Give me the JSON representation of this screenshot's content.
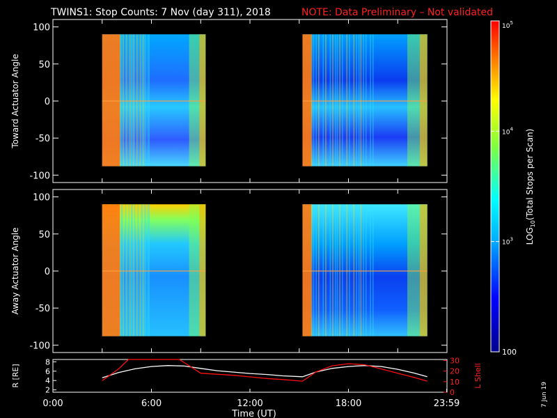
{
  "header": {
    "title": "TWINS1: Stop Counts:  7 Nov (day 311), 2018",
    "note": "NOTE: Data Preliminary – Not validated",
    "note_color": "#ff2020"
  },
  "footer": {
    "xlabel": "Time (UT)",
    "stamp": "7 Jun 19"
  },
  "colorbar": {
    "label": "LOG10(Total Stops per Scan)",
    "ticks": [
      {
        "label": "100",
        "value": 100
      },
      {
        "label": "10^3",
        "value": 1000
      },
      {
        "label": "10^4",
        "value": 10000
      },
      {
        "label": "10^5",
        "value": 100000
      }
    ],
    "range": [
      100,
      100000
    ],
    "scale": "log",
    "colormap": "rainbow"
  },
  "chart_data": [
    {
      "type": "heatmap",
      "panel": "toward",
      "ylabel": "Toward Actuator Angle",
      "ylim": [
        -110,
        110
      ],
      "y_ticks": [
        "-100",
        "-50",
        "0",
        "50",
        "100"
      ],
      "y_tick_values": [
        -100,
        -50,
        0,
        50,
        100
      ],
      "xlim": [
        0,
        24
      ],
      "data_segments": [
        {
          "start_h": 3.0,
          "end_h": 9.3,
          "angle_range": [
            -88,
            90
          ]
        },
        {
          "start_h": 15.2,
          "end_h": 22.8,
          "angle_range": [
            -88,
            90
          ]
        }
      ],
      "scale": "log"
    },
    {
      "type": "heatmap",
      "panel": "away",
      "ylabel": "Away Actuator Angle",
      "ylim": [
        -110,
        110
      ],
      "y_ticks": [
        "-100",
        "-50",
        "0",
        "50",
        "100"
      ],
      "y_tick_values": [
        -100,
        -50,
        0,
        50,
        100
      ],
      "xlim": [
        0,
        24
      ],
      "data_segments": [
        {
          "start_h": 3.0,
          "end_h": 9.3,
          "angle_range": [
            -88,
            90
          ]
        },
        {
          "start_h": 15.2,
          "end_h": 22.8,
          "angle_range": [
            -88,
            90
          ]
        }
      ],
      "scale": "log"
    },
    {
      "type": "line",
      "panel": "orbit",
      "ylabel_left": "R [RE]",
      "ylabel_right": "L Shell",
      "left_ticks": [
        "2",
        "4",
        "6",
        "8"
      ],
      "left_tick_values": [
        2,
        4,
        6,
        8
      ],
      "right_ticks": [
        "0",
        "10",
        "20",
        "30"
      ],
      "right_tick_values": [
        0,
        10,
        20,
        30
      ],
      "ylim_left": [
        1.5,
        8.5
      ],
      "ylim_right": [
        0,
        31
      ],
      "xlim": [
        0,
        24
      ],
      "x_ticks": [
        "0:00",
        "6:00",
        "12:00",
        "18:00",
        "23:59"
      ],
      "x_tick_values": [
        0,
        6,
        12,
        18,
        23.98
      ],
      "series": [
        {
          "name": "R [RE]",
          "color": "#ffffff",
          "axis": "left",
          "x": [
            3.0,
            4.0,
            5.0,
            6.0,
            7.0,
            8.0,
            9.0,
            10.0,
            11.0,
            12.0,
            13.0,
            14.0,
            15.2,
            16.0,
            17.0,
            18.0,
            19.0,
            20.0,
            21.0,
            22.0,
            22.8
          ],
          "y": [
            4.6,
            5.7,
            6.5,
            7.0,
            7.2,
            7.1,
            6.6,
            6.1,
            5.8,
            5.5,
            5.3,
            5.0,
            4.8,
            5.8,
            6.6,
            7.0,
            7.2,
            7.0,
            6.4,
            5.6,
            4.8
          ]
        },
        {
          "name": "L Shell",
          "color": "#ff1010",
          "axis": "right",
          "x": [
            3.0,
            4.0,
            4.6,
            7.7,
            8.0,
            9.0,
            10.0,
            11.0,
            12.0,
            13.0,
            14.0,
            15.2,
            16.0,
            17.0,
            18.0,
            19.0,
            20.0,
            21.0,
            22.0,
            22.8
          ],
          "y": [
            11,
            22,
            31,
            31,
            28,
            18,
            17,
            16,
            14.5,
            13,
            12,
            10.5,
            19,
            25,
            27,
            26,
            22,
            18,
            14,
            10.5
          ]
        }
      ]
    }
  ]
}
